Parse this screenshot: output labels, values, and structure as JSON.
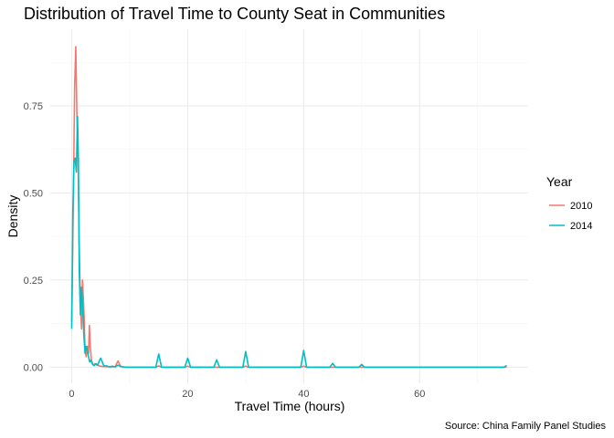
{
  "chart_data": {
    "type": "line",
    "title": "Distribution of Travel Time to County Seat in Communities",
    "xlabel": "Travel Time (hours)",
    "ylabel": "Density",
    "caption": "Source: China Family Panel Studies",
    "xlim": [
      -3.7,
      78.7
    ],
    "ylim": [
      -0.046,
      0.97
    ],
    "x_ticks": [
      0,
      20,
      40,
      60
    ],
    "x_tick_labels": [
      "0",
      "20",
      "40",
      "60"
    ],
    "x_minor": [
      10,
      30,
      50,
      70
    ],
    "y_ticks": [
      0,
      0.25,
      0.5,
      0.75
    ],
    "y_tick_labels": [
      "0.00",
      "0.25",
      "0.50",
      "0.75"
    ],
    "y_minor": [
      0.125,
      0.375,
      0.625,
      0.875
    ],
    "grid": true,
    "legend": {
      "title": "Year",
      "position": "right"
    },
    "series": [
      {
        "name": "2010",
        "color": "#F8766D",
        "x": [
          0,
          0.3,
          0.5,
          0.7,
          0.9,
          1.1,
          1.3,
          1.5,
          1.7,
          1.85,
          2.0,
          2.15,
          2.3,
          2.5,
          2.7,
          2.9,
          3.05,
          3.2,
          3.4,
          3.6,
          3.8,
          4.0,
          4.5,
          5.0,
          5.5,
          6.0,
          6.5,
          7.0,
          7.5,
          7.8,
          8.0,
          8.2,
          8.5,
          9.5,
          14.5,
          15.0,
          15.5,
          19.5,
          20.0,
          20.5,
          29.5,
          30.0,
          30.5,
          39.5,
          40.0,
          40.5,
          75.0
        ],
        "values": [
          0.13,
          0.5,
          0.8,
          0.92,
          0.72,
          0.6,
          0.35,
          0.18,
          0.11,
          0.25,
          0.2,
          0.14,
          0.05,
          0.03,
          0.06,
          0.04,
          0.12,
          0.06,
          0.02,
          0.01,
          0.005,
          0.01,
          0.005,
          0.003,
          0.002,
          0.002,
          0.001,
          0.001,
          0.002,
          0.012,
          0.018,
          0.01,
          0.002,
          0.0,
          0.0,
          0.004,
          0.0,
          0.0,
          0.003,
          0.0,
          0.0,
          0.003,
          0.0,
          0.0,
          0.003,
          0.0,
          0.0
        ]
      },
      {
        "name": "2014",
        "color": "#00BFC4",
        "x": [
          0,
          0.2,
          0.4,
          0.6,
          0.8,
          1.0,
          1.15,
          1.3,
          1.5,
          1.7,
          1.9,
          2.1,
          2.3,
          2.5,
          2.7,
          2.9,
          3.1,
          3.3,
          3.6,
          3.9,
          4.2,
          4.5,
          4.8,
          5.0,
          5.2,
          5.5,
          5.8,
          6.0,
          6.3,
          6.6,
          7.0,
          7.5,
          7.8,
          8.0,
          8.3,
          9.0,
          14.5,
          15.0,
          15.5,
          19.5,
          20.0,
          20.5,
          24.5,
          25.0,
          25.5,
          29.5,
          30.0,
          30.5,
          39.5,
          40.0,
          40.5,
          44.5,
          45.0,
          45.5,
          49.5,
          50.0,
          50.5,
          74.5,
          75.0
        ],
        "values": [
          0.11,
          0.45,
          0.59,
          0.6,
          0.56,
          0.72,
          0.6,
          0.28,
          0.15,
          0.23,
          0.17,
          0.09,
          0.04,
          0.06,
          0.05,
          0.03,
          0.015,
          0.02,
          0.008,
          0.005,
          0.01,
          0.006,
          0.02,
          0.026,
          0.018,
          0.006,
          0.003,
          0.004,
          0.002,
          0.001,
          0.003,
          0.001,
          0.004,
          0.006,
          0.003,
          0.0,
          0.0,
          0.038,
          0.0,
          0.0,
          0.026,
          0.0,
          0.0,
          0.021,
          0.0,
          0.0,
          0.045,
          0.0,
          0.0,
          0.048,
          0.0,
          0.0,
          0.011,
          0.0,
          0.0,
          0.008,
          0.0,
          0.0,
          0.005
        ]
      }
    ]
  }
}
